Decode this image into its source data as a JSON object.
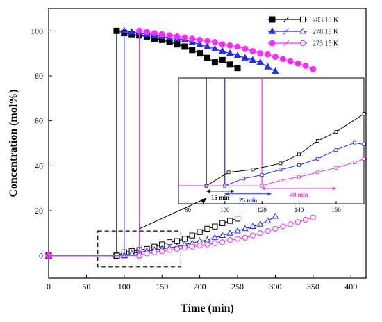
{
  "chart_data": [
    {
      "type": "scatter",
      "xlabel": "Time (min)",
      "ylabel": "Concentration (mol%)",
      "xlim": [
        0,
        420
      ],
      "ylim": [
        -10,
        110
      ],
      "xticks": [
        0,
        50,
        100,
        150,
        200,
        250,
        300,
        350,
        400
      ],
      "yticks": [
        0,
        20,
        40,
        60,
        80,
        100
      ],
      "legend_position": "top-right",
      "series": [
        {
          "name": "283.15 K",
          "color": "#000000",
          "marker": "square",
          "upper": {
            "x": [
              0,
              90,
              90,
              100,
              110,
              120,
              130,
              140,
              150,
              160,
              170,
              180,
              190,
              200,
              210,
              220,
              230,
              240,
              250
            ],
            "y": [
              0,
              0,
              100,
              99,
              98.5,
              98,
              97.5,
              96.5,
              96,
              95,
              94,
              93,
              91.5,
              90,
              88,
              86,
              87,
              85,
              83.5
            ]
          },
          "lower": {
            "x": [
              90,
              100,
              110,
              120,
              130,
              140,
              150,
              160,
              170,
              180,
              190,
              200,
              210,
              220,
              230,
              240,
              250
            ],
            "y": [
              0,
              1.5,
              2,
              2.5,
              3,
              4,
              5,
              6,
              6.5,
              7.5,
              9,
              10.5,
              12,
              13,
              14.5,
              15.5,
              16.5
            ]
          }
        },
        {
          "name": "278.15 K",
          "color": "#1f2cff",
          "marker": "triangle",
          "upper": {
            "x": [
              0,
              100,
              100,
              110,
              120,
              130,
              140,
              150,
              160,
              170,
              180,
              190,
              200,
              210,
              220,
              230,
              240,
              250,
              260,
              270,
              280,
              290,
              300
            ],
            "y": [
              0,
              0,
              100,
              99.5,
              99,
              98.5,
              98,
              97.5,
              97,
              96.5,
              96,
              95,
              94,
              93,
              92,
              91,
              90,
              89,
              88,
              87,
              86,
              84,
              82
            ]
          },
          "lower": {
            "x": [
              100,
              110,
              120,
              130,
              140,
              150,
              160,
              170,
              180,
              190,
              200,
              210,
              220,
              230,
              240,
              250,
              260,
              270,
              280,
              290,
              300
            ],
            "y": [
              0,
              1,
              1.5,
              2,
              2.5,
              3,
              3.5,
              4,
              5,
              5.5,
              6.5,
              7,
              8,
              9,
              10,
              11,
              12,
              13,
              14,
              15.5,
              17.5
            ]
          }
        },
        {
          "name": "273.15 K",
          "color": "#ff2cff",
          "marker": "circle",
          "upper": {
            "x": [
              0,
              120,
              120,
              130,
              140,
              150,
              160,
              170,
              180,
              190,
              200,
              210,
              220,
              230,
              240,
              250,
              260,
              270,
              280,
              290,
              300,
              310,
              320,
              330,
              340,
              350
            ],
            "y": [
              0,
              0,
              100,
              99.5,
              99,
              98.5,
              98,
              97.5,
              97,
              96.5,
              96,
              95.5,
              95,
              94,
              93.5,
              93,
              92,
              91,
              90,
              89.5,
              88.5,
              87.5,
              86.5,
              85.5,
              84.5,
              83
            ]
          },
          "lower": {
            "x": [
              120,
              130,
              140,
              150,
              160,
              170,
              180,
              190,
              200,
              210,
              220,
              230,
              240,
              250,
              260,
              270,
              280,
              290,
              300,
              310,
              320,
              330,
              340,
              350
            ],
            "y": [
              0,
              1,
              1.5,
              2,
              2.5,
              3,
              3.5,
              4,
              4.5,
              5,
              5.5,
              6,
              7,
              7.5,
              8,
              9,
              10,
              11,
              12,
              13,
              14,
              15,
              16,
              17
            ]
          }
        }
      ],
      "highlight_box": {
        "x": [
          65,
          175
        ],
        "y": [
          -5,
          11
        ]
      }
    },
    {
      "type": "line",
      "inset": true,
      "xlim": [
        75,
        175
      ],
      "ylim": [
        -2,
        12
      ],
      "xticks": [
        80,
        100,
        120,
        140,
        160
      ],
      "series": [
        {
          "name": "283.15 K",
          "color": "#000000",
          "x": [
            75,
            90,
            102,
            115,
            130,
            140,
            150,
            160,
            175
          ],
          "y": [
            0,
            0,
            1.5,
            1.8,
            2.5,
            3.5,
            5,
            6,
            8
          ]
        },
        {
          "name": "278.15 K",
          "color": "#1f2cff",
          "x": [
            75,
            100,
            110,
            120,
            130,
            140,
            150,
            160,
            170,
            175
          ],
          "y": [
            0,
            0,
            0.8,
            1.2,
            1.8,
            2.3,
            3,
            4,
            4.8,
            4.6
          ]
        },
        {
          "name": "273.15 K",
          "color": "#ff2cff",
          "x": [
            75,
            120,
            130,
            140,
            150,
            160,
            170,
            175
          ],
          "y": [
            0,
            0,
            0.6,
            1,
            1.5,
            2,
            2.6,
            3
          ]
        }
      ],
      "annotations": [
        {
          "label": "15 min",
          "from": 90,
          "to": 105,
          "y": -0.6,
          "color": "#000000"
        },
        {
          "label": "25 min",
          "from": 100,
          "to": 125,
          "y": -0.9,
          "color": "#1f2cff"
        },
        {
          "label": "40 min",
          "from": 120,
          "to": 160,
          "y": -0.3,
          "color": "#ff2cff"
        }
      ]
    }
  ]
}
